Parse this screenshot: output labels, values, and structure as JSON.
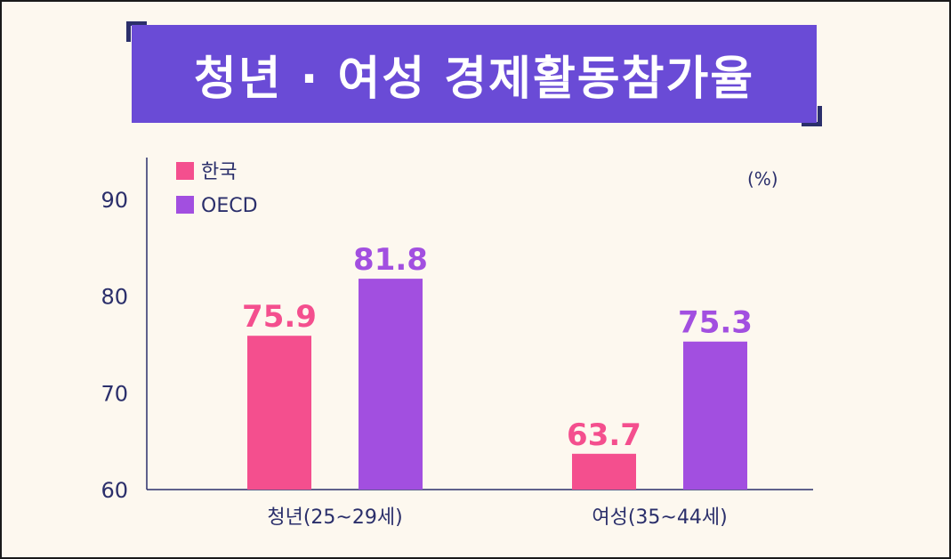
{
  "chart_data": {
    "type": "bar",
    "title": "청년 · 여성 경제활동참가율",
    "unit": "(%)",
    "categories": [
      "청년(25~29세)",
      "여성(35~44세)"
    ],
    "series": [
      {
        "name": "한국",
        "values": [
          75.9,
          63.7
        ],
        "color": "#f44f8e"
      },
      {
        "name": "OECD",
        "values": [
          81.8,
          75.3
        ],
        "color": "#a24fe0"
      }
    ],
    "yticks": [
      60,
      70,
      80,
      90
    ],
    "ylim": [
      60,
      90
    ],
    "legend": "top-left",
    "grid": false
  }
}
